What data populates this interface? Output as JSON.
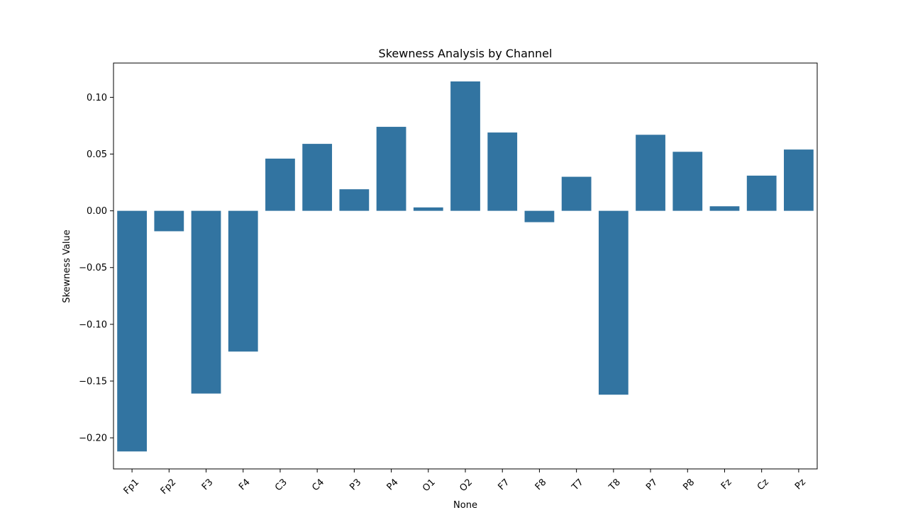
{
  "chart_data": {
    "type": "bar",
    "title": "Skewness Analysis by Channel",
    "xlabel": "None",
    "ylabel": "Skewness Value",
    "categories": [
      "Fp1",
      "Fp2",
      "F3",
      "F4",
      "C3",
      "C4",
      "P3",
      "P4",
      "O1",
      "O2",
      "F7",
      "F8",
      "T7",
      "T8",
      "P7",
      "P8",
      "Fz",
      "Cz",
      "Pz"
    ],
    "values": [
      -0.212,
      -0.018,
      -0.161,
      -0.124,
      0.046,
      0.059,
      0.019,
      0.074,
      0.003,
      0.114,
      0.069,
      -0.01,
      0.03,
      -0.162,
      0.067,
      0.052,
      0.004,
      0.031,
      0.054
    ],
    "yticks": [
      -0.2,
      -0.15,
      -0.1,
      -0.05,
      0.0,
      0.05,
      0.1
    ],
    "ytick_labels": [
      "−0.20",
      "−0.15",
      "−0.10",
      "−0.05",
      "0.00",
      "0.05",
      "0.10"
    ],
    "ylim": [
      -0.2274,
      0.1302
    ],
    "grid": false,
    "bar_color": "#3274a1"
  }
}
